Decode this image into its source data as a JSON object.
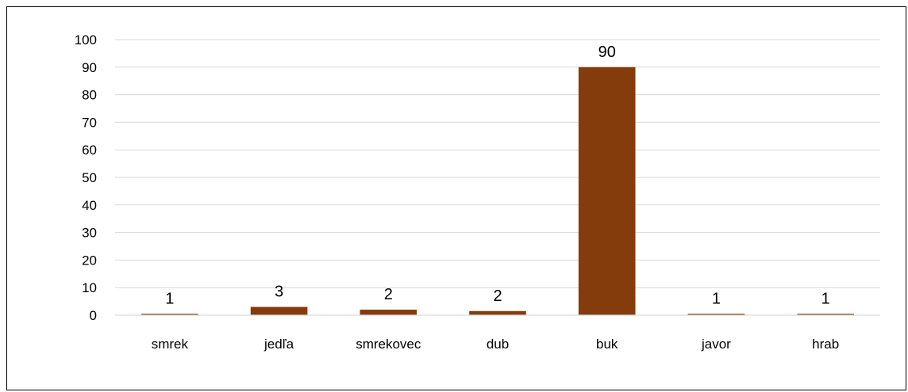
{
  "chart_data": {
    "type": "bar",
    "title": "",
    "xlabel": "",
    "ylabel": "",
    "categories": [
      "smrek",
      "jedľa",
      "smrekovec",
      "dub",
      "buk",
      "javor",
      "hrab"
    ],
    "bar_heights": [
      0.5,
      3,
      2,
      1.5,
      90,
      0.5,
      0.5
    ],
    "data_labels": [
      "1",
      "3",
      "2",
      "2",
      "90",
      "1",
      "1"
    ],
    "ylim": [
      0,
      100
    ],
    "yticks": [
      0,
      10,
      20,
      30,
      40,
      50,
      60,
      70,
      80,
      90,
      100
    ],
    "grid": true,
    "legend": "none",
    "bar_color": "#843C0C",
    "grid_color": "#D9D9D9"
  }
}
